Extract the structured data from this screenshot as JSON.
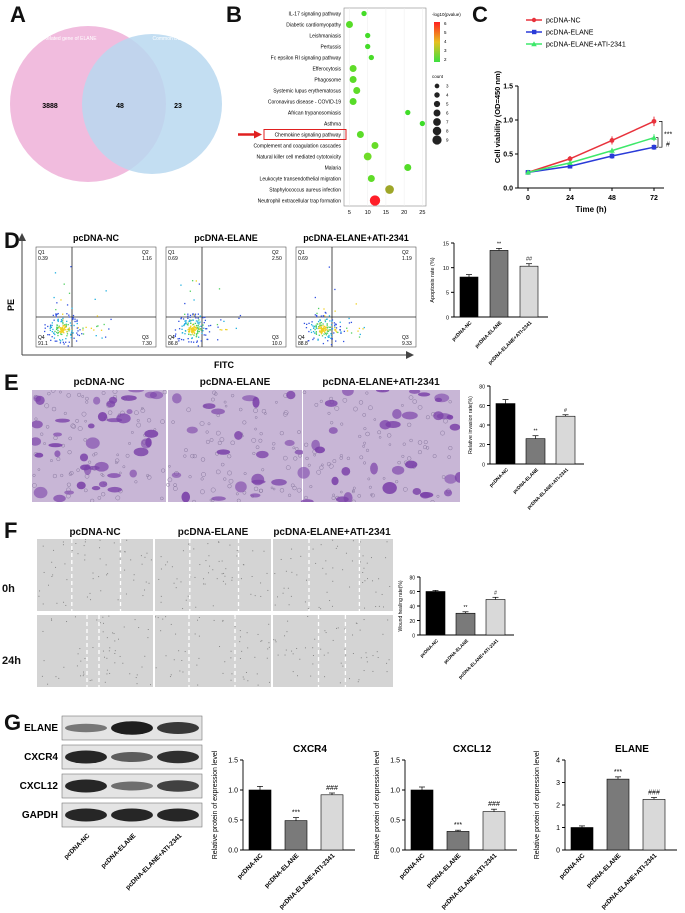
{
  "panels": {
    "A": "A",
    "B": "B",
    "C": "C",
    "D": "D",
    "E": "E",
    "F": "F",
    "G": "G"
  },
  "venn": {
    "left_label": "Related gene of ELANE",
    "right_label": "Common DEGs",
    "left_only": "3888",
    "overlap": "48",
    "right_only": "23",
    "left_color": "#f0b8dc",
    "right_color": "#b8d8f0"
  },
  "groups": [
    "pcDNA-NC",
    "pcDNA-ELANE",
    "pcDNA-ELANE+ATI-2341"
  ],
  "chart_data": [
    {
      "panel": "B",
      "type": "scatter",
      "categories": [
        "IL-17 signaling pathway",
        "Diabetic cardiomyopathy",
        "Leishmaniasis",
        "Pertussis",
        "Fc epsilon RI signaling pathway",
        "Efferocytosis",
        "Phagosome",
        "Systemic lupus erythematosus",
        "Coronavirus disease - COVID-19",
        "African trypanosomiasis",
        "Asthma",
        "Chemokine signaling pathway",
        "Complement and coagulation cascades",
        "Natural killer cell mediated cytotoxicity",
        "Malaria",
        "Leukocyte transendothelial migration",
        "Staphylococcus aureus infection",
        "Neutrophil extracellular trap formation"
      ],
      "x": [
        9,
        5,
        10,
        10,
        11,
        6,
        6,
        7,
        6,
        21,
        25,
        8,
        12,
        10,
        21,
        11,
        16,
        12
      ],
      "count": [
        3,
        5,
        3,
        3,
        3,
        5,
        5,
        5,
        5,
        3,
        3,
        5,
        5,
        6,
        5,
        5,
        7,
        9
      ],
      "log10p": [
        1.7,
        2.2,
        1.7,
        1.7,
        1.8,
        2.4,
        2.3,
        2.4,
        2.2,
        1.6,
        1.5,
        2.3,
        2.6,
        2.8,
        2.1,
        2.4,
        4.0,
        6.5
      ],
      "xticks": [
        5,
        10,
        15,
        20,
        25
      ],
      "xlim": [
        3.5,
        26
      ],
      "legend_title": "-log10(pvalue)",
      "color_ticks": [
        "6",
        "5",
        "4",
        "3",
        "2"
      ],
      "size_title": "count",
      "size_ticks": [
        "3",
        "4",
        "5",
        "6",
        "7",
        "8",
        "9"
      ],
      "highlight": "Chemokine signaling pathway"
    },
    {
      "panel": "C",
      "type": "line",
      "x": [
        0,
        24,
        48,
        72
      ],
      "xlabel": "Time (h)",
      "ylabel": "Cell viability (OD=450 nm)",
      "ylim": [
        0,
        1.5
      ],
      "yticks": [
        "0.0",
        "0.5",
        "1.0",
        "1.5"
      ],
      "series": [
        {
          "name": "pcDNA-NC",
          "values": [
            0.23,
            0.43,
            0.7,
            0.98
          ],
          "err": [
            0.02,
            0.04,
            0.06,
            0.07
          ],
          "color": "#e8323c",
          "marker": "circle"
        },
        {
          "name": "pcDNA-ELANE",
          "values": [
            0.23,
            0.32,
            0.47,
            0.6
          ],
          "err": [
            0.02,
            0.03,
            0.04,
            0.04
          ],
          "color": "#2a3bd8",
          "marker": "square"
        },
        {
          "name": "pcDNA-ELANE+ATI-2341",
          "values": [
            0.23,
            0.37,
            0.55,
            0.74
          ],
          "err": [
            0.02,
            0.03,
            0.04,
            0.05
          ],
          "color": "#3de86a",
          "marker": "triangle"
        }
      ],
      "sig": [
        "***",
        "#"
      ]
    },
    {
      "panel": "D",
      "type": "bar",
      "categories": [
        "pcDNA-NC",
        "pcDNA-ELANE",
        "pcDNA-ELANE+ATI-2341"
      ],
      "values": [
        8.1,
        13.5,
        10.3
      ],
      "err": [
        0.5,
        0.4,
        0.5
      ],
      "ylabel": "Apoptosis rate (%)",
      "ylim": [
        0,
        15
      ],
      "yticks": [
        "0",
        "5",
        "10",
        "15"
      ],
      "sig": [
        "",
        "**",
        "##"
      ]
    },
    {
      "panel": "E",
      "type": "bar",
      "categories": [
        "pcDNA-NC",
        "pcDNA-ELANE",
        "pcDNA-ELANE+ATI-2341"
      ],
      "values": [
        62,
        26,
        49
      ],
      "err": [
        4,
        3,
        1.5
      ],
      "ylabel": "Relative invasion rate(%)",
      "ylim": [
        0,
        80
      ],
      "yticks": [
        "0",
        "20",
        "40",
        "60",
        "80"
      ],
      "sig": [
        "",
        "**",
        "#"
      ]
    },
    {
      "panel": "F",
      "type": "bar",
      "categories": [
        "pcDNA-NC",
        "pcDNA-ELANE",
        "pcDNA-ELANE+ATI-2341"
      ],
      "values": [
        60,
        30,
        49
      ],
      "err": [
        1.5,
        2,
        3
      ],
      "ylabel": "Wound healing rate(%)",
      "ylim": [
        0,
        80
      ],
      "yticks": [
        "0",
        "20",
        "40",
        "60",
        "80"
      ],
      "sig": [
        "",
        "**",
        "#"
      ]
    },
    {
      "panel": "G",
      "type": "bar",
      "title": "CXCR4",
      "categories": [
        "pcDNA-NC",
        "pcDNA-ELANE",
        "pcDNA-ELANE+ATI-2341"
      ],
      "values": [
        1.0,
        0.49,
        0.92
      ],
      "err": [
        0.06,
        0.05,
        0.03
      ],
      "ylabel": "Relative protein of expression level",
      "ylim": [
        0,
        1.5
      ],
      "yticks": [
        "0.0",
        "0.5",
        "1.0",
        "1.5"
      ],
      "sig": [
        "",
        "***",
        "###"
      ]
    },
    {
      "panel": "G",
      "type": "bar",
      "title": "CXCL12",
      "categories": [
        "pcDNA-NC",
        "pcDNA-ELANE",
        "pcDNA-ELANE+ATI-2341"
      ],
      "values": [
        1.0,
        0.31,
        0.64
      ],
      "err": [
        0.05,
        0.02,
        0.04
      ],
      "ylabel": "Relative protein of expression level",
      "ylim": [
        0,
        1.5
      ],
      "yticks": [
        "0.0",
        "0.5",
        "1.0",
        "1.5"
      ],
      "sig": [
        "",
        "***",
        "###"
      ]
    },
    {
      "panel": "G",
      "type": "bar",
      "title": "ELANE",
      "categories": [
        "pcDNA-NC",
        "pcDNA-ELANE",
        "pcDNA-ELANE+ATI-2341"
      ],
      "values": [
        1.0,
        3.15,
        2.25
      ],
      "err": [
        0.07,
        0.1,
        0.08
      ],
      "ylabel": "Relative protein of expression level",
      "ylim": [
        0,
        4
      ],
      "yticks": [
        "0",
        "1",
        "2",
        "3",
        "4"
      ],
      "sig": [
        "",
        "***",
        "###"
      ]
    }
  ],
  "flow": {
    "ylabel": "PE",
    "xlabel": "FITC",
    "quadrants": [
      {
        "q1": "Q1",
        "v1": "0.39",
        "q2": "Q2",
        "v2": "1.16",
        "q4": "Q4",
        "v4": "91.1",
        "q3": "Q3",
        "v3": "7.30"
      },
      {
        "q1": "Q1",
        "v1": "0.69",
        "q2": "Q2",
        "v2": "2.50",
        "q4": "Q4",
        "v4": "86.8",
        "q3": "Q3",
        "v3": "10.0"
      },
      {
        "q1": "Q1",
        "v1": "0.69",
        "q2": "Q2",
        "v2": "1.19",
        "q4": "Q4",
        "v4": "88.8",
        "q3": "Q3",
        "v3": "9.33"
      }
    ]
  },
  "wound": {
    "row_0h": "0h",
    "row_24h": "24h"
  },
  "western": {
    "bands": [
      "ELANE",
      "CXCR4",
      "CXCL12",
      "GAPDH"
    ]
  }
}
